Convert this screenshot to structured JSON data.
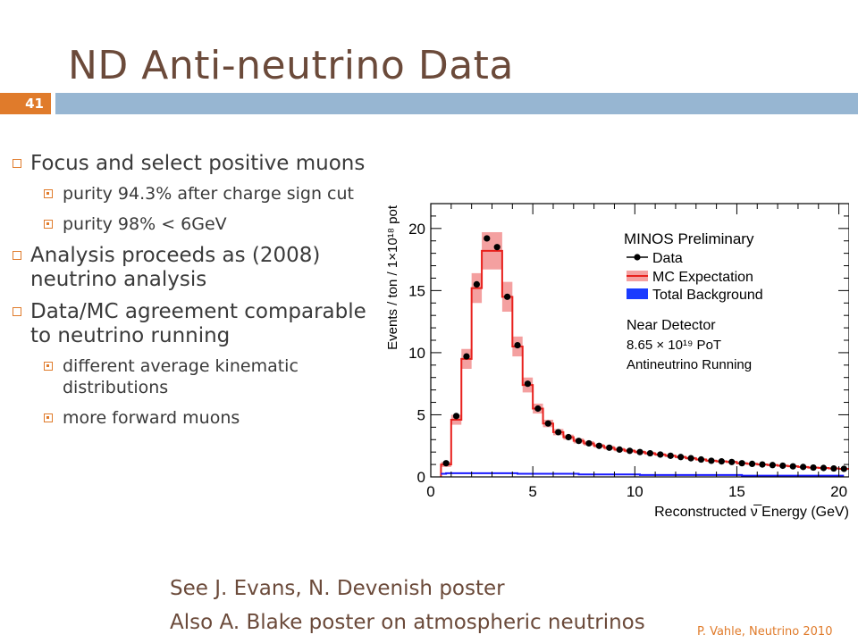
{
  "slide": {
    "title": "ND Anti-neutrino Data",
    "number": "41",
    "accent_color": "#e07b2b",
    "bar_color": "#97b6d2",
    "title_color": "#6b4a3a"
  },
  "bullets": [
    {
      "text": "Focus and select positive muons",
      "subs": [
        "purity 94.3% after charge sign cut",
        "purity 98% < 6GeV"
      ]
    },
    {
      "text": "Analysis proceeds as (2008) neutrino analysis",
      "subs": []
    },
    {
      "text": "Data/MC agreement comparable to neutrino running",
      "subs": [
        "different average kinematic distributions",
        "more forward muons"
      ]
    }
  ],
  "notes": {
    "line1": "See J. Evans, N. Devenish poster",
    "line2": "Also A. Blake poster on atmospheric neutrinos"
  },
  "credit": "P. Vahle, Neutrino 2010",
  "chart_data": {
    "type": "line",
    "xlabel": "Reconstructed ν̅ Energy (GeV)",
    "ylabel": "Events / ton / 1×10¹⁸ pot",
    "xlim": [
      0,
      20.5
    ],
    "ylim": [
      0,
      22
    ],
    "xticks": [
      0,
      5,
      10,
      15,
      20
    ],
    "yticks": [
      0,
      5,
      10,
      15,
      20
    ],
    "annotations": {
      "header": "MINOS Preliminary",
      "detector": "Near Detector",
      "pot": "8.65 × 10¹⁹ PoT",
      "running": "Antineutrino Running"
    },
    "legend_position": "top-right",
    "series": [
      {
        "name": "Data",
        "style": "markers",
        "color": "#000000",
        "x": [
          0.75,
          1.25,
          1.75,
          2.25,
          2.75,
          3.25,
          3.75,
          4.25,
          4.75,
          5.25,
          5.75,
          6.25,
          6.75,
          7.25,
          7.75,
          8.25,
          8.75,
          9.25,
          9.75,
          10.25,
          10.75,
          11.25,
          11.75,
          12.25,
          12.75,
          13.25,
          13.75,
          14.25,
          14.75,
          15.25,
          15.75,
          16.25,
          16.75,
          17.25,
          17.75,
          18.25,
          18.75,
          19.25,
          19.75,
          20.25
        ],
        "values": [
          1.1,
          4.9,
          9.7,
          15.5,
          19.2,
          18.5,
          14.5,
          10.6,
          7.5,
          5.5,
          4.3,
          3.6,
          3.2,
          2.9,
          2.7,
          2.5,
          2.35,
          2.2,
          2.1,
          2.0,
          1.9,
          1.8,
          1.7,
          1.6,
          1.5,
          1.4,
          1.3,
          1.25,
          1.2,
          1.1,
          1.05,
          1.0,
          0.95,
          0.9,
          0.85,
          0.8,
          0.75,
          0.72,
          0.68,
          0.65
        ]
      },
      {
        "name": "MC Expectation",
        "style": "step-band",
        "color": "#e8211d",
        "band_color": "#f4a0a0",
        "x": [
          0.75,
          1.25,
          1.75,
          2.25,
          2.75,
          3.25,
          3.75,
          4.25,
          4.75,
          5.25,
          5.75,
          6.25,
          6.75,
          7.25,
          7.75,
          8.25,
          8.75,
          9.25,
          9.75,
          10.25,
          10.75,
          11.25,
          11.75,
          12.25,
          12.75,
          13.25,
          13.75,
          14.25,
          14.75,
          15.25,
          15.75,
          16.25,
          16.75,
          17.25,
          17.75,
          18.25,
          18.75,
          19.25,
          19.75,
          20.25
        ],
        "values": [
          1.0,
          4.6,
          9.5,
          15.2,
          18.2,
          18.2,
          14.5,
          10.5,
          7.4,
          5.5,
          4.3,
          3.6,
          3.2,
          2.9,
          2.7,
          2.5,
          2.35,
          2.2,
          2.1,
          2.0,
          1.9,
          1.8,
          1.7,
          1.6,
          1.5,
          1.4,
          1.3,
          1.25,
          1.2,
          1.1,
          1.05,
          1.0,
          0.95,
          0.9,
          0.85,
          0.8,
          0.75,
          0.72,
          0.68,
          0.65
        ],
        "errors": [
          0.2,
          0.4,
          0.8,
          1.2,
          1.5,
          1.5,
          1.2,
          0.8,
          0.6,
          0.4,
          0.3,
          0.25,
          0.2,
          0.2,
          0.18,
          0.15,
          0.15,
          0.14,
          0.13,
          0.12,
          0.12,
          0.11,
          0.1,
          0.1,
          0.1,
          0.09,
          0.09,
          0.08,
          0.08,
          0.08,
          0.07,
          0.07,
          0.07,
          0.06,
          0.06,
          0.06,
          0.05,
          0.05,
          0.05,
          0.05
        ]
      },
      {
        "name": "Total Background",
        "style": "step",
        "color": "#1a1aff",
        "x": [
          0.75,
          2.25,
          4.25,
          7.25,
          10.25,
          15.25,
          20.25
        ],
        "values": [
          0.25,
          0.3,
          0.3,
          0.25,
          0.2,
          0.15,
          0.1
        ]
      }
    ]
  }
}
